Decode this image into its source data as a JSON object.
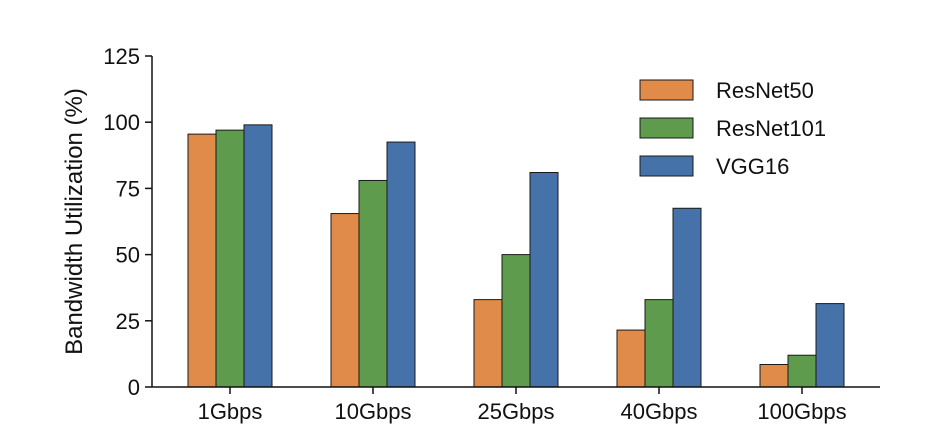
{
  "chart_data": {
    "type": "bar",
    "title": "",
    "xlabel": "",
    "ylabel": "Bandwidth Utilization (%)",
    "ylim": [
      0,
      125
    ],
    "yticks": [
      0,
      25,
      50,
      75,
      100,
      125
    ],
    "ytick_labels": [
      "0",
      "25",
      "50",
      "75",
      "100",
      "125"
    ],
    "grid": false,
    "legend_position": "top-right",
    "categories": [
      "1Gbps",
      "10Gbps",
      "25Gbps",
      "40Gbps",
      "100Gbps"
    ],
    "series": [
      {
        "name": "ResNet50",
        "color": "#e08b4a",
        "values": [
          95.5,
          65.5,
          33,
          21.5,
          8.5
        ]
      },
      {
        "name": "ResNet101",
        "color": "#5f9b4d",
        "values": [
          97,
          78,
          50,
          33,
          12
        ]
      },
      {
        "name": "VGG16",
        "color": "#4573a9",
        "values": [
          99,
          92.5,
          81,
          67.5,
          31.5
        ]
      }
    ]
  }
}
